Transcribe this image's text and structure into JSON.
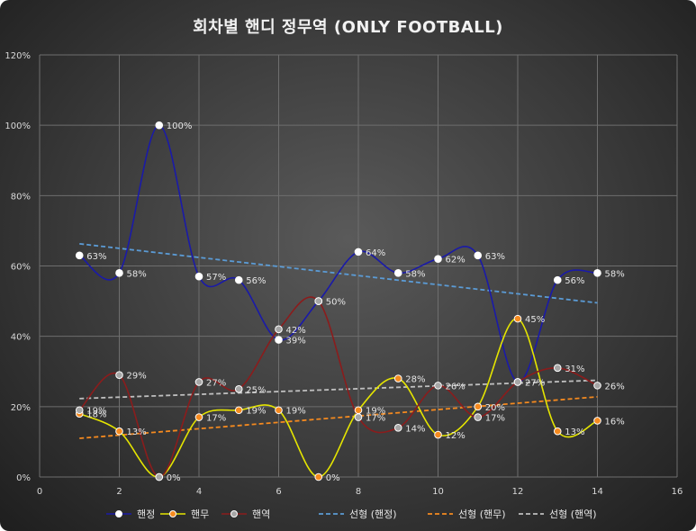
{
  "chart_data": {
    "type": "scatter",
    "title": "회차별 핸디 정무역 (ONLY FOOTBALL)",
    "xlim": [
      0,
      16
    ],
    "ylim": [
      0,
      120
    ],
    "x_ticks": [
      0,
      2,
      4,
      6,
      8,
      10,
      12,
      14,
      16
    ],
    "y_ticks": [
      0,
      20,
      40,
      60,
      80,
      100,
      120
    ],
    "y_tick_labels": [
      "0%",
      "20%",
      "40%",
      "60%",
      "80%",
      "100%",
      "120%"
    ],
    "grid": "vertical and horizontal",
    "legend_position": "bottom",
    "x": [
      1,
      2,
      3,
      4,
      5,
      6,
      7,
      8,
      9,
      10,
      11,
      12,
      13,
      14
    ],
    "series": [
      {
        "name": "핸정",
        "color": "#1a1aa8",
        "marker_fill": "#ffffff",
        "values": [
          63,
          58,
          100,
          57,
          56,
          39,
          50,
          64,
          58,
          62,
          63,
          27,
          56,
          58
        ],
        "labels": [
          "63%",
          "58%",
          "100%",
          "57%",
          "56%",
          "39%",
          "",
          "64%",
          "58%",
          "62%",
          "63%",
          "",
          "56%",
          "58%"
        ]
      },
      {
        "name": "핸무",
        "color": "#e5e500",
        "marker_fill": "#f58a1f",
        "values": [
          18,
          13,
          0,
          17,
          19,
          19,
          0,
          19,
          28,
          12,
          20,
          45,
          13,
          16
        ],
        "labels": [
          "18%",
          "13%",
          "",
          "17%",
          "19%",
          "19%",
          "0%",
          "19%",
          "28%",
          "12%",
          "20%",
          "45%",
          "13%",
          "16%"
        ]
      },
      {
        "name": "핸역",
        "color": "#8b1c1c",
        "marker_fill": "#a6a6a6",
        "values": [
          19,
          29,
          0,
          27,
          25,
          42,
          50,
          17,
          14,
          26,
          17,
          27,
          31,
          26
        ],
        "labels": [
          "19%",
          "29%",
          "0%",
          "27%",
          "25%",
          "42%",
          "50%",
          "17%",
          "14%",
          "26%",
          "17%",
          "27%",
          "31%",
          "26%"
        ]
      }
    ],
    "trendlines": [
      {
        "name": "선형 (핸정)",
        "color": "#5b9bd5",
        "x": [
          1,
          14
        ],
        "values": [
          66.3,
          49.5
        ]
      },
      {
        "name": "선형 (핸무)",
        "color": "#f58a1f",
        "x": [
          1,
          14
        ],
        "values": [
          11.0,
          22.8
        ]
      },
      {
        "name": "선형 (핸역)",
        "color": "#bfbfbf",
        "x": [
          1,
          14
        ],
        "values": [
          22.3,
          27.5
        ]
      }
    ]
  }
}
